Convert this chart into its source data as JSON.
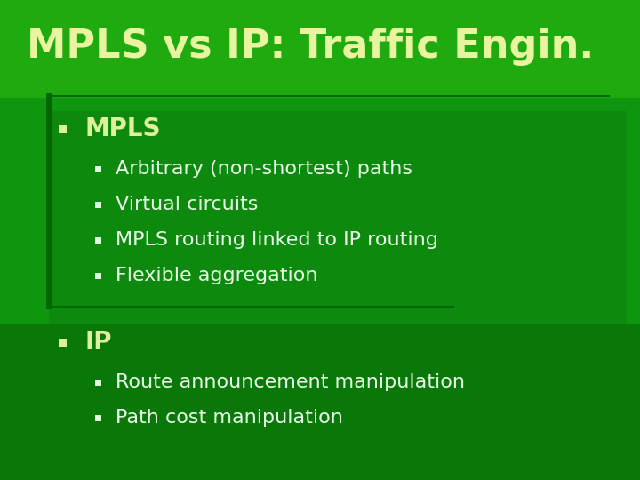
{
  "title": "MPLS vs IP: Traffic Engin.",
  "title_color": "#e8f4a0",
  "title_fontsize": 32,
  "bg_color": "#1a9910",
  "title_bg_color": "#1a9910",
  "content_bg_color": "#18a010",
  "content_panel_color": "#0d8a0d",
  "ip_panel_color": "#0a7a0a",
  "divider_color": "#006600",
  "left_bar_color": "#006600",
  "bullet_color": "#dff09a",
  "sub_bullet_color": "#e0ffe0",
  "items": [
    {
      "text": "MPLS",
      "level": 1,
      "color": "#dff09a",
      "fontsize": 20,
      "bold": true
    },
    {
      "text": "Arbitrary (non-shortest) paths",
      "level": 2,
      "color": "#e8ffe8",
      "fontsize": 16,
      "bold": false
    },
    {
      "text": "Virtual circuits",
      "level": 2,
      "color": "#e8ffe8",
      "fontsize": 16,
      "bold": false
    },
    {
      "text": "MPLS routing linked to IP routing",
      "level": 2,
      "color": "#e8ffe8",
      "fontsize": 16,
      "bold": false
    },
    {
      "text": "Flexible aggregation",
      "level": 2,
      "color": "#e8ffe8",
      "fontsize": 16,
      "bold": false
    },
    {
      "text": "IP",
      "level": 1,
      "color": "#dff09a",
      "fontsize": 20,
      "bold": true
    },
    {
      "text": "Route announcement manipulation",
      "level": 2,
      "color": "#e8ffe8",
      "fontsize": 16,
      "bold": false
    },
    {
      "text": "Path cost manipulation",
      "level": 2,
      "color": "#e8ffe8",
      "fontsize": 16,
      "bold": false
    }
  ]
}
